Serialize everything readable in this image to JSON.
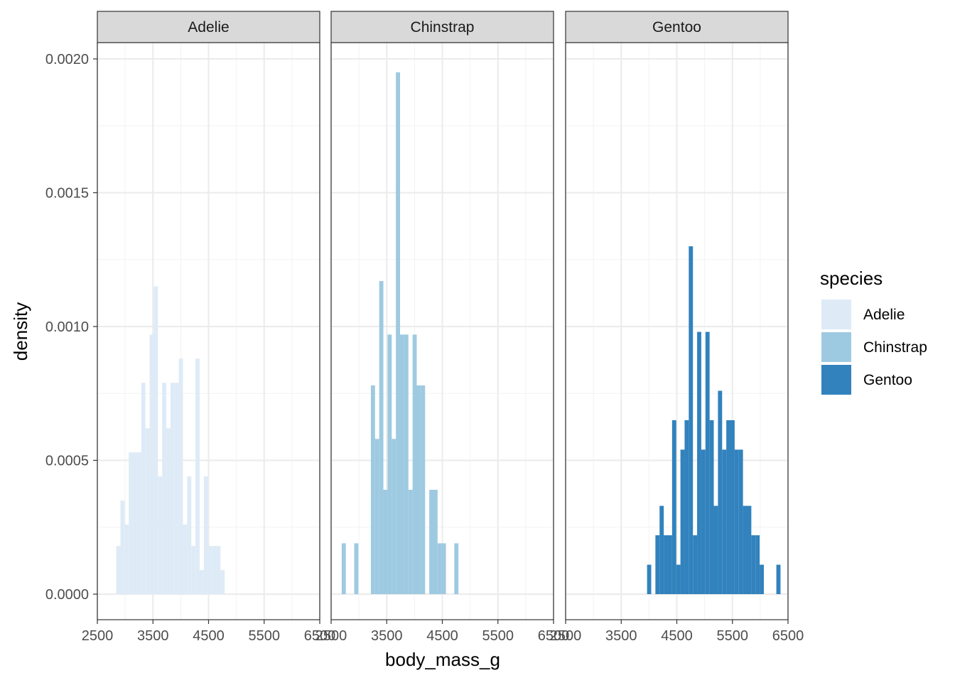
{
  "chart_data": {
    "type": "bar",
    "subtype": "faceted-histogram",
    "xlabel": "body_mass_g",
    "ylabel": "density",
    "xlim": [
      2500,
      6500
    ],
    "ylim": [
      0,
      0.00205
    ],
    "x_ticks": [
      "2500",
      "3500",
      "4500",
      "5500",
      "6500"
    ],
    "x_tick_values": [
      2500,
      3500,
      4500,
      5500,
      6500
    ],
    "y_ticks": [
      "0.0000",
      "0.0005",
      "0.0010",
      "0.0015",
      "0.0020"
    ],
    "y_tick_values": [
      0,
      0.0005,
      0.001,
      0.0015,
      0.002
    ],
    "bin_width": 75,
    "grid": true,
    "legend": {
      "title": "species",
      "placement": "right",
      "entries": [
        "Adelie",
        "Chinstrap",
        "Gentoo"
      ]
    },
    "facets": [
      {
        "label": "Adelie",
        "color": "#deebf7",
        "bins": [
          {
            "x0": 2840,
            "y": 0.00018
          },
          {
            "x0": 2915,
            "y": 0.00035
          },
          {
            "x0": 2990,
            "y": 0.00026
          },
          {
            "x0": 3065,
            "y": 0.00053
          },
          {
            "x0": 3140,
            "y": 0.00053
          },
          {
            "x0": 3215,
            "y": 0.00053
          },
          {
            "x0": 3290,
            "y": 0.00079
          },
          {
            "x0": 3365,
            "y": 0.00062
          },
          {
            "x0": 3440,
            "y": 0.00097
          },
          {
            "x0": 3515,
            "y": 0.00115
          },
          {
            "x0": 3590,
            "y": 0.00044
          },
          {
            "x0": 3665,
            "y": 0.00079
          },
          {
            "x0": 3740,
            "y": 0.00062
          },
          {
            "x0": 3815,
            "y": 0.00079
          },
          {
            "x0": 3890,
            "y": 0.00079
          },
          {
            "x0": 3965,
            "y": 0.00088
          },
          {
            "x0": 4040,
            "y": 0.00026
          },
          {
            "x0": 4115,
            "y": 0.00044
          },
          {
            "x0": 4190,
            "y": 0.00018
          },
          {
            "x0": 4265,
            "y": 0.00088
          },
          {
            "x0": 4340,
            "y": 9e-05
          },
          {
            "x0": 4415,
            "y": 0.00044
          },
          {
            "x0": 4490,
            "y": 0.00018
          },
          {
            "x0": 4565,
            "y": 0.00018
          },
          {
            "x0": 4640,
            "y": 0.00018
          },
          {
            "x0": 4715,
            "y": 9e-05
          }
        ]
      },
      {
        "label": "Chinstrap",
        "color": "#9ecae1",
        "bins": [
          {
            "x0": 2690,
            "y": 0.00019
          },
          {
            "x0": 2915,
            "y": 0.00019
          },
          {
            "x0": 3215,
            "y": 0.00078
          },
          {
            "x0": 3290,
            "y": 0.00058
          },
          {
            "x0": 3365,
            "y": 0.00117
          },
          {
            "x0": 3440,
            "y": 0.00039
          },
          {
            "x0": 3515,
            "y": 0.00097
          },
          {
            "x0": 3590,
            "y": 0.00058
          },
          {
            "x0": 3665,
            "y": 0.00195
          },
          {
            "x0": 3740,
            "y": 0.00097
          },
          {
            "x0": 3815,
            "y": 0.00097
          },
          {
            "x0": 3890,
            "y": 0.00039
          },
          {
            "x0": 3965,
            "y": 0.00097
          },
          {
            "x0": 4040,
            "y": 0.00078
          },
          {
            "x0": 4115,
            "y": 0.00078
          },
          {
            "x0": 4265,
            "y": 0.00039
          },
          {
            "x0": 4340,
            "y": 0.00039
          },
          {
            "x0": 4415,
            "y": 0.00019
          },
          {
            "x0": 4490,
            "y": 0.00019
          },
          {
            "x0": 4715,
            "y": 0.00019
          }
        ]
      },
      {
        "label": "Gentoo",
        "color": "#3182bd",
        "bins": [
          {
            "x0": 3965,
            "y": 0.00011
          },
          {
            "x0": 4115,
            "y": 0.00022
          },
          {
            "x0": 4190,
            "y": 0.00033
          },
          {
            "x0": 4265,
            "y": 0.00022
          },
          {
            "x0": 4340,
            "y": 0.00022
          },
          {
            "x0": 4415,
            "y": 0.00065
          },
          {
            "x0": 4490,
            "y": 0.00011
          },
          {
            "x0": 4565,
            "y": 0.00054
          },
          {
            "x0": 4640,
            "y": 0.00065
          },
          {
            "x0": 4715,
            "y": 0.0013
          },
          {
            "x0": 4790,
            "y": 0.00022
          },
          {
            "x0": 4865,
            "y": 0.00098
          },
          {
            "x0": 4940,
            "y": 0.00054
          },
          {
            "x0": 5015,
            "y": 0.00098
          },
          {
            "x0": 5090,
            "y": 0.00065
          },
          {
            "x0": 5165,
            "y": 0.00033
          },
          {
            "x0": 5240,
            "y": 0.00076
          },
          {
            "x0": 5315,
            "y": 0.00054
          },
          {
            "x0": 5390,
            "y": 0.00065
          },
          {
            "x0": 5465,
            "y": 0.00065
          },
          {
            "x0": 5540,
            "y": 0.00054
          },
          {
            "x0": 5615,
            "y": 0.00054
          },
          {
            "x0": 5690,
            "y": 0.00033
          },
          {
            "x0": 5765,
            "y": 0.00033
          },
          {
            "x0": 5840,
            "y": 0.00022
          },
          {
            "x0": 5915,
            "y": 0.00022
          },
          {
            "x0": 5990,
            "y": 0.00011
          },
          {
            "x0": 6290,
            "y": 0.00011
          }
        ]
      }
    ]
  }
}
